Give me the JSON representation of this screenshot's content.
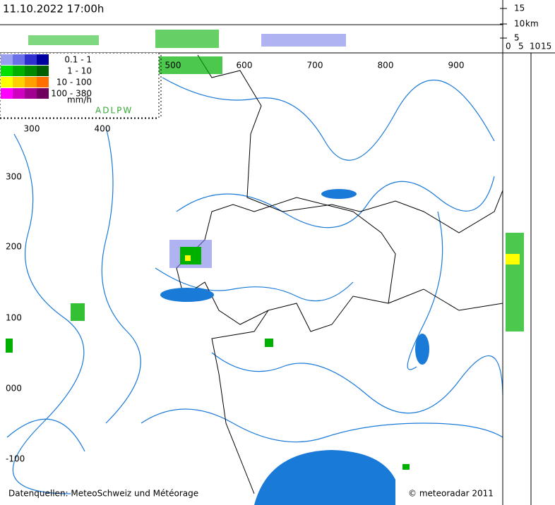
{
  "header": {
    "timestamp": "11.10.2022 17:00h"
  },
  "height_scale": {
    "top_labels": [
      "15",
      "10",
      "5"
    ],
    "unit": "km",
    "bottom_labels": [
      "0",
      "5",
      "10",
      "15"
    ]
  },
  "legend": {
    "rows": [
      {
        "label": "0.1 -    1",
        "colors": [
          "#9aa0f0",
          "#6a70e8",
          "#3030d0",
          "#0000a0"
        ]
      },
      {
        "label": "1 -   10",
        "colors": [
          "#00e000",
          "#00b000",
          "#008800",
          "#006000"
        ]
      },
      {
        "label": "10 - 100",
        "colors": [
          "#ffff00",
          "#ffd000",
          "#ffa000",
          "#ff7000"
        ]
      },
      {
        "label": "100 - 380",
        "colors": [
          "#ff00ff",
          "#d000c0",
          "#a00090",
          "#700060"
        ]
      }
    ],
    "unit": "mm/h"
  },
  "network": "ADLPW",
  "grid": {
    "top_labels": [
      "500",
      "600",
      "700",
      "800",
      "900"
    ],
    "inner_top_labels": [
      "300",
      "400"
    ],
    "left_labels": [
      "300",
      "200",
      "100",
      "000",
      "-100"
    ]
  },
  "footer": {
    "sources": "Datenquellen: MeteoSchweiz und Météorage",
    "copyright": "© meteoradar 2011"
  }
}
